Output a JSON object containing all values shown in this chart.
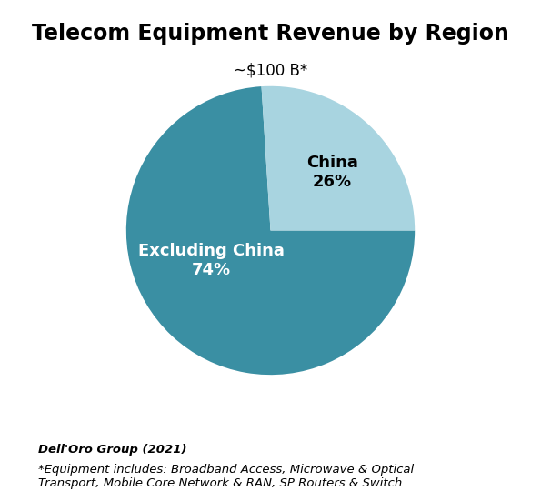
{
  "title": "Telecom Equipment Revenue by Region",
  "subtitle": "~$100 B*",
  "slices": [
    74,
    26
  ],
  "labels": [
    "Excluding China",
    "China"
  ],
  "colors": [
    "#3a8fa3",
    "#a8d4e0"
  ],
  "label_colors": [
    "white",
    "black"
  ],
  "label_fontsize": 13,
  "footer_bold": "Dell'Oro Group (2021)",
  "footer_italic": "*Equipment includes: Broadband Access, Microwave & Optical\nTransport, Mobile Core Network & RAN, SP Routers & Switch",
  "title_fontsize": 17,
  "subtitle_fontsize": 12,
  "background_color": "#ffffff",
  "start_angle": 0
}
